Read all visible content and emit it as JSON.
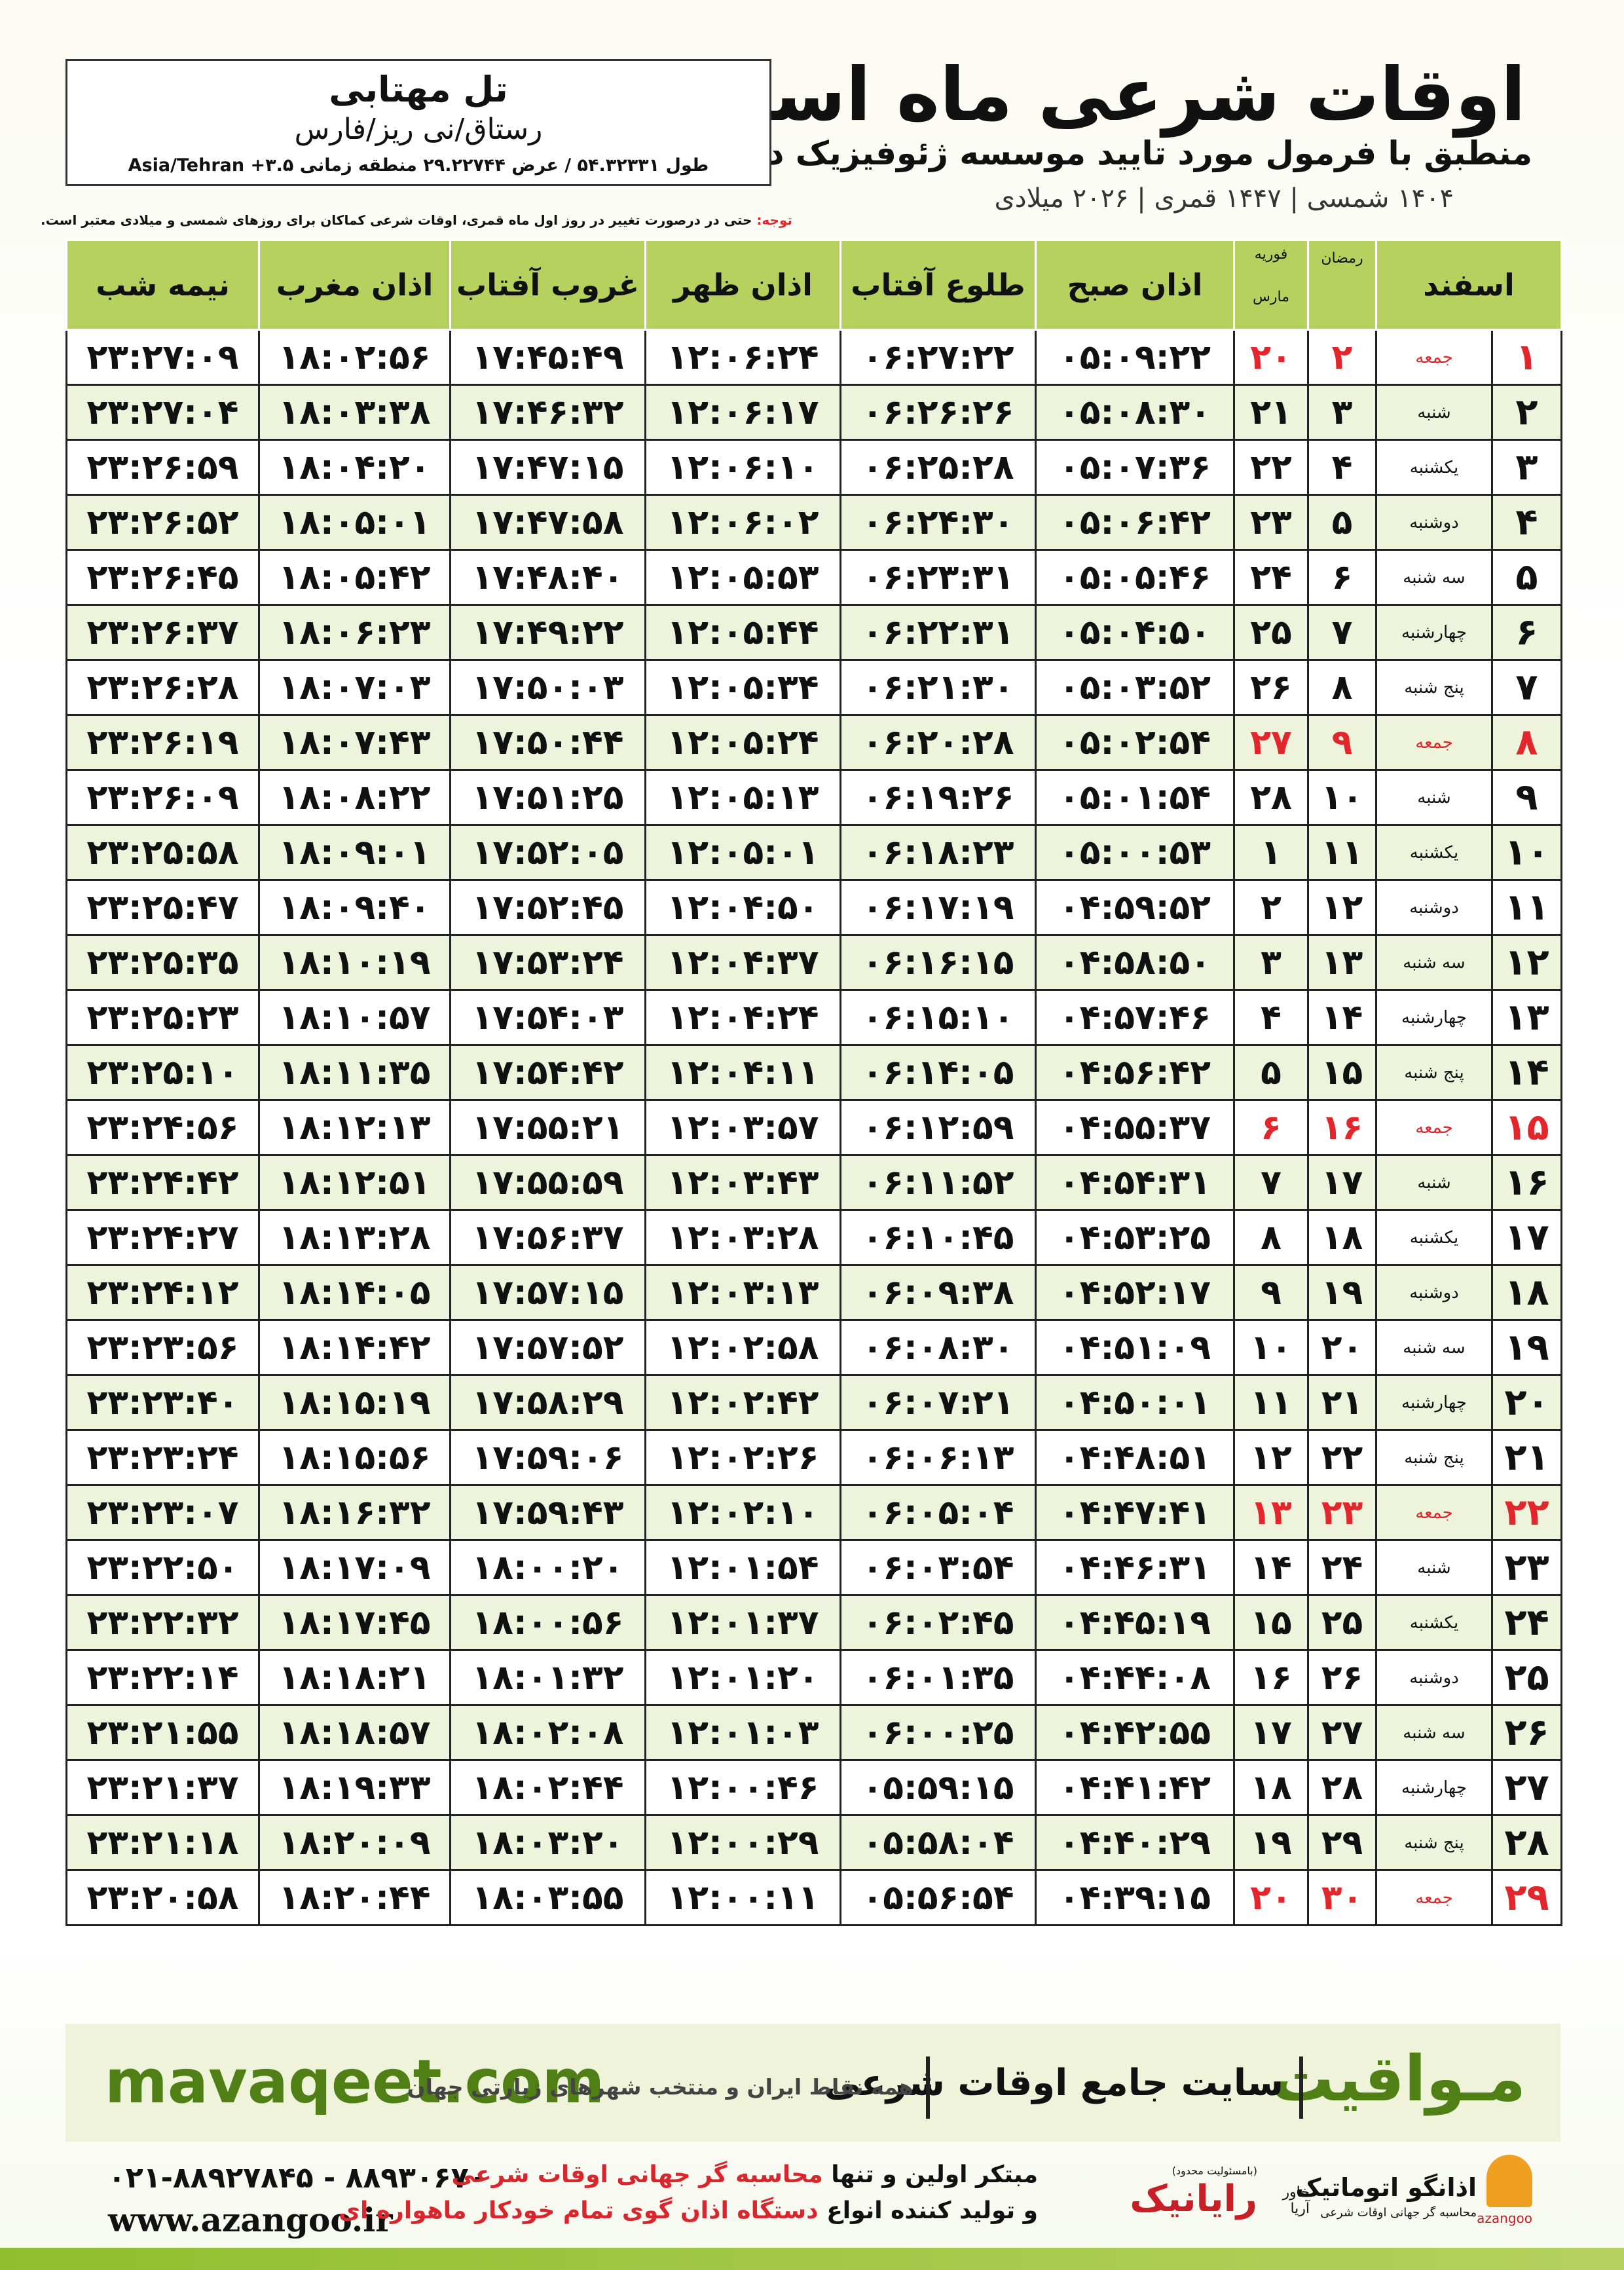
{
  "header": {
    "title": "اوقات شرعی ماه اسفند",
    "subtitle": "منطبق با فرمول مورد تایید موسسه ژئوفیزیک دانشگاه تهران",
    "dates": "۱۴۰۴ شمسی | ۱۴۴۷ قمری | ۲۰۲۶ میلادی",
    "city": "تل مهتابی",
    "region": "رستاق/نی ریز/فارس",
    "coords": "طول ۵۴.۳۲۳۳۱ / عرض ۲۹.۲۲۷۴۴ منطقه زمانی ۳.۵+ Asia/Tehran",
    "note_label": "توجه:",
    "note": "حتی در درصورت تغییر در روز اول ماه قمری، اوقات شرعی کماکان برای روزهای شمسی و میلادی معتبر است."
  },
  "table": {
    "head": [
      "اسفند",
      "رمضان",
      "فوریه",
      "مارس",
      "اذان صبح",
      "طلوع آفتاب",
      "اذان ظهر",
      "غروب آفتاب",
      "اذان مغرب",
      "نیمه شب"
    ],
    "row_colors": [
      "#ffffff",
      "#eef4dc"
    ],
    "rows": [
      {
        "cells": [
          "۱",
          "جمعه",
          "۲",
          "۲۰",
          "۰۵:۰۹:۲۲",
          "۰۶:۲۷:۲۲",
          "۱۲:۰۶:۲۴",
          "۱۷:۴۵:۴۹",
          "۱۸:۰۲:۵۶",
          "۲۳:۲۷:۰۹"
        ],
        "color": "#e3262c"
      },
      {
        "cells": [
          "۲",
          "شنبه",
          "۳",
          "۲۱",
          "۰۵:۰۸:۳۰",
          "۰۶:۲۶:۲۶",
          "۱۲:۰۶:۱۷",
          "۱۷:۴۶:۳۲",
          "۱۸:۰۳:۳۸",
          "۲۳:۲۷:۰۴"
        ]
      },
      {
        "cells": [
          "۳",
          "یکشنبه",
          "۴",
          "۲۲",
          "۰۵:۰۷:۳۶",
          "۰۶:۲۵:۲۸",
          "۱۲:۰۶:۱۰",
          "۱۷:۴۷:۱۵",
          "۱۸:۰۴:۲۰",
          "۲۳:۲۶:۵۹"
        ]
      },
      {
        "cells": [
          "۴",
          "دوشنبه",
          "۵",
          "۲۳",
          "۰۵:۰۶:۴۲",
          "۰۶:۲۴:۳۰",
          "۱۲:۰۶:۰۲",
          "۱۷:۴۷:۵۸",
          "۱۸:۰۵:۰۱",
          "۲۳:۲۶:۵۲"
        ]
      },
      {
        "cells": [
          "۵",
          "سه شنبه",
          "۶",
          "۲۴",
          "۰۵:۰۵:۴۶",
          "۰۶:۲۳:۳۱",
          "۱۲:۰۵:۵۳",
          "۱۷:۴۸:۴۰",
          "۱۸:۰۵:۴۲",
          "۲۳:۲۶:۴۵"
        ]
      },
      {
        "cells": [
          "۶",
          "چهارشنبه",
          "۷",
          "۲۵",
          "۰۵:۰۴:۵۰",
          "۰۶:۲۲:۳۱",
          "۱۲:۰۵:۴۴",
          "۱۷:۴۹:۲۲",
          "۱۸:۰۶:۲۳",
          "۲۳:۲۶:۳۷"
        ]
      },
      {
        "cells": [
          "۷",
          "پنج شنبه",
          "۸",
          "۲۶",
          "۰۵:۰۳:۵۲",
          "۰۶:۲۱:۳۰",
          "۱۲:۰۵:۳۴",
          "۱۷:۵۰:۰۳",
          "۱۸:۰۷:۰۳",
          "۲۳:۲۶:۲۸"
        ]
      },
      {
        "cells": [
          "۸",
          "جمعه",
          "۹",
          "۲۷",
          "۰۵:۰۲:۵۴",
          "۰۶:۲۰:۲۸",
          "۱۲:۰۵:۲۴",
          "۱۷:۵۰:۴۴",
          "۱۸:۰۷:۴۳",
          "۲۳:۲۶:۱۹"
        ],
        "color": "#e3262c"
      },
      {
        "cells": [
          "۹",
          "شنبه",
          "۱۰",
          "۲۸",
          "۰۵:۰۱:۵۴",
          "۰۶:۱۹:۲۶",
          "۱۲:۰۵:۱۳",
          "۱۷:۵۱:۲۵",
          "۱۸:۰۸:۲۲",
          "۲۳:۲۶:۰۹"
        ]
      },
      {
        "cells": [
          "۱۰",
          "یکشنبه",
          "۱۱",
          "۱",
          "۰۵:۰۰:۵۳",
          "۰۶:۱۸:۲۳",
          "۱۲:۰۵:۰۱",
          "۱۷:۵۲:۰۵",
          "۱۸:۰۹:۰۱",
          "۲۳:۲۵:۵۸"
        ]
      },
      {
        "cells": [
          "۱۱",
          "دوشنبه",
          "۱۲",
          "۲",
          "۰۴:۵۹:۵۲",
          "۰۶:۱۷:۱۹",
          "۱۲:۰۴:۵۰",
          "۱۷:۵۲:۴۵",
          "۱۸:۰۹:۴۰",
          "۲۳:۲۵:۴۷"
        ]
      },
      {
        "cells": [
          "۱۲",
          "سه شنبه",
          "۱۳",
          "۳",
          "۰۴:۵۸:۵۰",
          "۰۶:۱۶:۱۵",
          "۱۲:۰۴:۳۷",
          "۱۷:۵۳:۲۴",
          "۱۸:۱۰:۱۹",
          "۲۳:۲۵:۳۵"
        ]
      },
      {
        "cells": [
          "۱۳",
          "چهارشنبه",
          "۱۴",
          "۴",
          "۰۴:۵۷:۴۶",
          "۰۶:۱۵:۱۰",
          "۱۲:۰۴:۲۴",
          "۱۷:۵۴:۰۳",
          "۱۸:۱۰:۵۷",
          "۲۳:۲۵:۲۳"
        ]
      },
      {
        "cells": [
          "۱۴",
          "پنج شنبه",
          "۱۵",
          "۵",
          "۰۴:۵۶:۴۲",
          "۰۶:۱۴:۰۵",
          "۱۲:۰۴:۱۱",
          "۱۷:۵۴:۴۲",
          "۱۸:۱۱:۳۵",
          "۲۳:۲۵:۱۰"
        ]
      },
      {
        "cells": [
          "۱۵",
          "جمعه",
          "۱۶",
          "۶",
          "۰۴:۵۵:۳۷",
          "۰۶:۱۲:۵۹",
          "۱۲:۰۳:۵۷",
          "۱۷:۵۵:۲۱",
          "۱۸:۱۲:۱۳",
          "۲۳:۲۴:۵۶"
        ],
        "color": "#e3262c"
      },
      {
        "cells": [
          "۱۶",
          "شنبه",
          "۱۷",
          "۷",
          "۰۴:۵۴:۳۱",
          "۰۶:۱۱:۵۲",
          "۱۲:۰۳:۴۳",
          "۱۷:۵۵:۵۹",
          "۱۸:۱۲:۵۱",
          "۲۳:۲۴:۴۲"
        ]
      },
      {
        "cells": [
          "۱۷",
          "یکشنبه",
          "۱۸",
          "۸",
          "۰۴:۵۳:۲۵",
          "۰۶:۱۰:۴۵",
          "۱۲:۰۳:۲۸",
          "۱۷:۵۶:۳۷",
          "۱۸:۱۳:۲۸",
          "۲۳:۲۴:۲۷"
        ]
      },
      {
        "cells": [
          "۱۸",
          "دوشنبه",
          "۱۹",
          "۹",
          "۰۴:۵۲:۱۷",
          "۰۶:۰۹:۳۸",
          "۱۲:۰۳:۱۳",
          "۱۷:۵۷:۱۵",
          "۱۸:۱۴:۰۵",
          "۲۳:۲۴:۱۲"
        ]
      },
      {
        "cells": [
          "۱۹",
          "سه شنبه",
          "۲۰",
          "۱۰",
          "۰۴:۵۱:۰۹",
          "۰۶:۰۸:۳۰",
          "۱۲:۰۲:۵۸",
          "۱۷:۵۷:۵۲",
          "۱۸:۱۴:۴۲",
          "۲۳:۲۳:۵۶"
        ]
      },
      {
        "cells": [
          "۲۰",
          "چهارشنبه",
          "۲۱",
          "۱۱",
          "۰۴:۵۰:۰۱",
          "۰۶:۰۷:۲۱",
          "۱۲:۰۲:۴۲",
          "۱۷:۵۸:۲۹",
          "۱۸:۱۵:۱۹",
          "۲۳:۲۳:۴۰"
        ]
      },
      {
        "cells": [
          "۲۱",
          "پنج شنبه",
          "۲۲",
          "۱۲",
          "۰۴:۴۸:۵۱",
          "۰۶:۰۶:۱۳",
          "۱۲:۰۲:۲۶",
          "۱۷:۵۹:۰۶",
          "۱۸:۱۵:۵۶",
          "۲۳:۲۳:۲۴"
        ]
      },
      {
        "cells": [
          "۲۲",
          "جمعه",
          "۲۳",
          "۱۳",
          "۰۴:۴۷:۴۱",
          "۰۶:۰۵:۰۴",
          "۱۲:۰۲:۱۰",
          "۱۷:۵۹:۴۳",
          "۱۸:۱۶:۳۲",
          "۲۳:۲۳:۰۷"
        ],
        "color": "#e3262c"
      },
      {
        "cells": [
          "۲۳",
          "شنبه",
          "۲۴",
          "۱۴",
          "۰۴:۴۶:۳۱",
          "۰۶:۰۳:۵۴",
          "۱۲:۰۱:۵۴",
          "۱۸:۰۰:۲۰",
          "۱۸:۱۷:۰۹",
          "۲۳:۲۲:۵۰"
        ]
      },
      {
        "cells": [
          "۲۴",
          "یکشنبه",
          "۲۵",
          "۱۵",
          "۰۴:۴۵:۱۹",
          "۰۶:۰۲:۴۵",
          "۱۲:۰۱:۳۷",
          "۱۸:۰۰:۵۶",
          "۱۸:۱۷:۴۵",
          "۲۳:۲۲:۳۲"
        ]
      },
      {
        "cells": [
          "۲۵",
          "دوشنبه",
          "۲۶",
          "۱۶",
          "۰۴:۴۴:۰۸",
          "۰۶:۰۱:۳۵",
          "۱۲:۰۱:۲۰",
          "۱۸:۰۱:۳۲",
          "۱۸:۱۸:۲۱",
          "۲۳:۲۲:۱۴"
        ]
      },
      {
        "cells": [
          "۲۶",
          "سه شنبه",
          "۲۷",
          "۱۷",
          "۰۴:۴۲:۵۵",
          "۰۶:۰۰:۲۵",
          "۱۲:۰۱:۰۳",
          "۱۸:۰۲:۰۸",
          "۱۸:۱۸:۵۷",
          "۲۳:۲۱:۵۵"
        ]
      },
      {
        "cells": [
          "۲۷",
          "چهارشنبه",
          "۲۸",
          "۱۸",
          "۰۴:۴۱:۴۲",
          "۰۵:۵۹:۱۵",
          "۱۲:۰۰:۴۶",
          "۱۸:۰۲:۴۴",
          "۱۸:۱۹:۳۳",
          "۲۳:۲۱:۳۷"
        ]
      },
      {
        "cells": [
          "۲۸",
          "پنج شنبه",
          "۲۹",
          "۱۹",
          "۰۴:۴۰:۲۹",
          "۰۵:۵۸:۰۴",
          "۱۲:۰۰:۲۹",
          "۱۸:۰۳:۲۰",
          "۱۸:۲۰:۰۹",
          "۲۳:۲۱:۱۸"
        ]
      },
      {
        "cells": [
          "۲۹",
          "جمعه",
          "۳۰",
          "۲۰",
          "۰۴:۳۹:۱۵",
          "۰۵:۵۶:۵۴",
          "۱۲:۰۰:۱۱",
          "۱۸:۰۳:۵۵",
          "۱۸:۲۰:۴۴",
          "۲۳:۲۰:۵۸"
        ],
        "color": "#e3262c"
      }
    ]
  },
  "footer": {
    "brand": "مـواقیت",
    "slogan": "سایت جامع اوقات شرعی",
    "coverage": "همه نقاط ایران و منتخب شهرهای زیارتی جهان",
    "site": "mavaqeet.com",
    "phones": "۰۲۱-۸۸۹۲۷۸۴۵ - ۸۸۹۳۰۶۷۰",
    "url": "www.azangoo.ir",
    "line1_a": "مبتکر اولین و تنها",
    "line1_b": "محاسبه گر جهانی اوقات شرعی",
    "line2_a": "و تولید کننده انواع",
    "line2_b": "دستگاه اذان گوی تمام خودکار ماهواره ای",
    "logo1": "رایانیک",
    "logo1_sub": "خاور آریا",
    "logo1_note": "(بامسئولیت محدود)",
    "logo2": "اذانگو اتوماتیک",
    "logo2_sub": "محاسبه گر جهانی اوقات شرعی",
    "logo2_en": "azangoo"
  }
}
